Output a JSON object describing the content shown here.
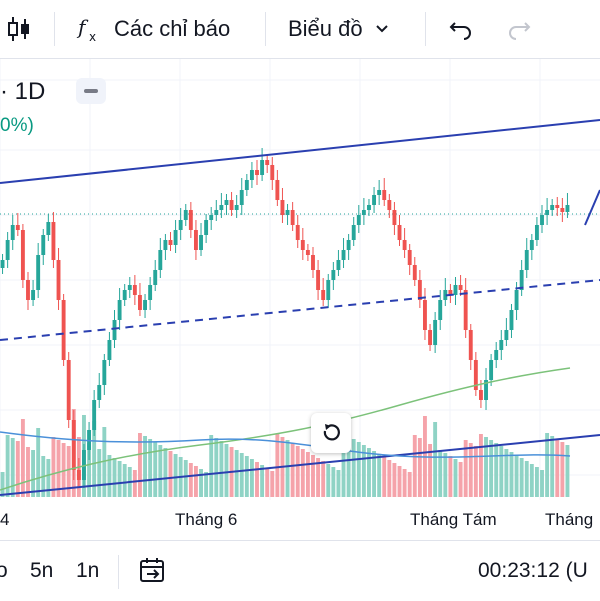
{
  "toolbar": {
    "indicators_label": "Các chỉ báo",
    "chart_type_label": "Biểu đồ"
  },
  "legend": {
    "symbol": "· 1D",
    "change": "0%)"
  },
  "xaxis": {
    "labels": [
      "4",
      "Tháng 6",
      "Tháng Tám",
      "Tháng"
    ]
  },
  "bottombar": {
    "ranges": [
      "o",
      "5n",
      "1n"
    ],
    "clock": "00:23:12 (U"
  },
  "colors": {
    "up": "#26a69a",
    "down": "#ef5350",
    "vol_up": "#8fd3c5",
    "vol_down": "#f5a3aa",
    "channel": "#2a3fb0",
    "ma_green": "#7cc27a",
    "ma_blue": "#4a90d9"
  },
  "icons": [
    "candles-icon",
    "fx-icon",
    "chevron-down-icon",
    "undo-icon",
    "redo-icon",
    "reset-icon",
    "calendar-arrow-icon"
  ]
}
